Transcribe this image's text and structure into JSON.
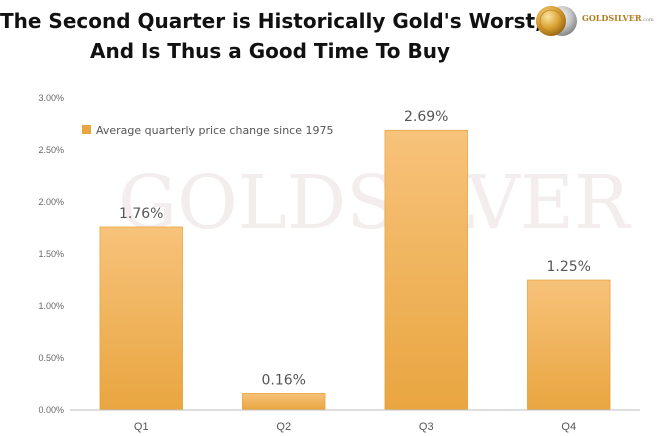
{
  "title": {
    "line1": "The Second Quarter is Historically Gold's Worst,",
    "line2": "And Is Thus a Good Time To Buy"
  },
  "logo": {
    "icon": "gold-silver-coins-icon",
    "text": "GOLDSILVER",
    "suffix": ".com"
  },
  "watermark": "GOLDSILVER",
  "colors": {
    "bar_top": "#f7c27a",
    "bar_bottom": "#e9a640",
    "bar_edge": "#e2992c",
    "axis": "#bfbfbf"
  },
  "chart_data": {
    "type": "bar",
    "categories": [
      "Q1",
      "Q2",
      "Q3",
      "Q4"
    ],
    "series": [
      {
        "name": "Average quarterly price change since 1975",
        "values": [
          1.76,
          0.16,
          2.69,
          1.25
        ]
      }
    ],
    "data_labels": [
      "1.76%",
      "0.16%",
      "2.69%",
      "1.25%"
    ],
    "yticks": [
      "0.00%",
      "0.50%",
      "1.00%",
      "1.50%",
      "2.00%",
      "2.50%",
      "3.00%"
    ],
    "ytick_values": [
      0,
      0.5,
      1.0,
      1.5,
      2.0,
      2.5,
      3.0
    ],
    "ylim": [
      0,
      3.0
    ],
    "grid": false,
    "legend": "top-left",
    "xlabel": "",
    "ylabel": ""
  }
}
